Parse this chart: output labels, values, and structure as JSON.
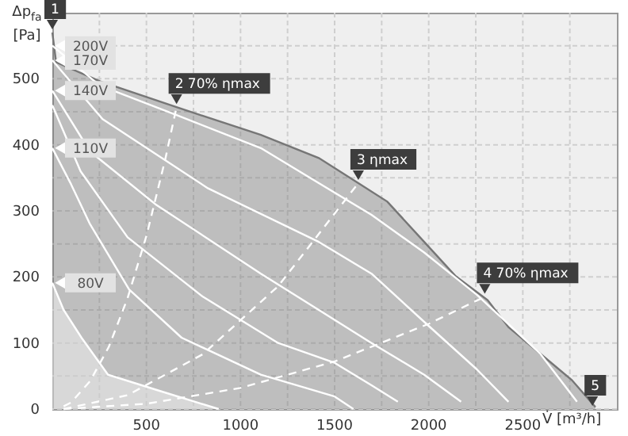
{
  "chart_data": {
    "type": "line",
    "xlabel": "V̇ [m³/h]",
    "ylabel": "Δp$_{fa}$ [Pa]",
    "xlim": [
      0,
      3000
    ],
    "ylim": [
      0,
      600
    ],
    "xticks": [
      {
        "value": 250,
        "label": null
      },
      500,
      {
        "value": 750,
        "label": null
      },
      1000,
      {
        "value": 1250,
        "label": null
      },
      1500,
      {
        "value": 1750,
        "label": null
      },
      2000,
      {
        "value": 2250,
        "label": null
      },
      2500,
      {
        "value": 2750,
        "label": null
      }
    ],
    "yticks": [
      0,
      {
        "value": 50,
        "label": null
      },
      100,
      {
        "value": 150,
        "label": null
      },
      200,
      {
        "value": 250,
        "label": null
      },
      300,
      {
        "value": 350,
        "label": null
      },
      400,
      {
        "value": 450,
        "label": null
      },
      500,
      {
        "value": 550,
        "label": null
      }
    ],
    "grid": true,
    "legend": "left",
    "series": [
      {
        "type": "area",
        "color": "#767676",
        "x": [
          0,
          20,
          254,
          660,
          1108,
          1416,
          1626,
          1780,
          1976,
          2144,
          2313,
          2424,
          2592,
          2760,
          2886
        ],
        "values": [
          570,
          525,
          496,
          457,
          415,
          380,
          342,
          314,
          253,
          201,
          165,
          124,
          84,
          44,
          3
        ]
      },
      {
        "type": "area",
        "name": "80V",
        "color": "#ffffff",
        "x": [
          0,
          60,
          155,
          296,
          576,
          884
        ],
        "values": [
          191,
          150,
          108,
          52,
          27,
          0
        ]
      },
      {
        "name": "200V",
        "color": "#ffffff",
        "x": [
          0,
          250,
          660,
          1108,
          1416,
          1696,
          1976,
          2256,
          2592,
          2788
        ],
        "values": [
          550,
          490,
          445,
          395,
          342,
          294,
          237,
          173,
          84,
          11
        ]
      },
      {
        "name": "170V",
        "color": "#ffffff",
        "x": [
          0,
          267,
          828,
          1416,
          1696,
          1976,
          2256,
          2424
        ],
        "values": [
          528,
          439,
          334,
          253,
          205,
          132,
          60,
          11
        ]
      },
      {
        "name": "140V",
        "color": "#ffffff",
        "x": [
          0,
          200,
          548,
          1108,
          1416,
          1696,
          1976,
          2172
        ],
        "values": [
          482,
          390,
          310,
          205,
          150,
          100,
          52,
          11
        ]
      },
      {
        "color": "#ffffff",
        "x": [
          0,
          150,
          400,
          800,
          1200,
          1500,
          1696,
          1836
        ],
        "values": [
          460,
          360,
          260,
          170,
          100,
          70,
          36,
          11
        ]
      },
      {
        "name": "110V",
        "color": "#ffffff",
        "x": [
          0,
          100,
          200,
          408,
          687,
          1108,
          1500,
          1600
        ],
        "values": [
          395,
          340,
          280,
          181,
          108,
          52,
          19,
          0
        ]
      },
      {
        "color": "#ffffff",
        "line_style": "dashed",
        "x": [
          60,
          100,
          200,
          300,
          400,
          500,
          600,
          660
        ],
        "values": [
          4,
          10,
          42,
          94,
          168,
          262,
          378,
          457
        ]
      },
      {
        "color": "#ffffff",
        "line_style": "dashed",
        "x": [
          60,
          400,
          800,
          1200,
          1626
        ],
        "values": [
          0,
          21,
          83,
          186,
          342
        ]
      },
      {
        "color": "#ffffff",
        "line_style": "dashed",
        "x": [
          60,
          500,
          1000,
          1500,
          2000,
          2298
        ],
        "values": [
          0,
          8,
          32,
          72,
          129,
          170
        ]
      }
    ],
    "annotations": [
      {
        "text": "1",
        "x": 0,
        "y": 570
      },
      {
        "text": "2 70% ηmax",
        "x": 660,
        "y": 457
      },
      {
        "text": "3 ηmax",
        "x": 1626,
        "y": 342
      },
      {
        "text": "4 70% ηmax",
        "x": 2298,
        "y": 170
      },
      {
        "text": "5",
        "x": 2870,
        "y": 0
      }
    ]
  }
}
